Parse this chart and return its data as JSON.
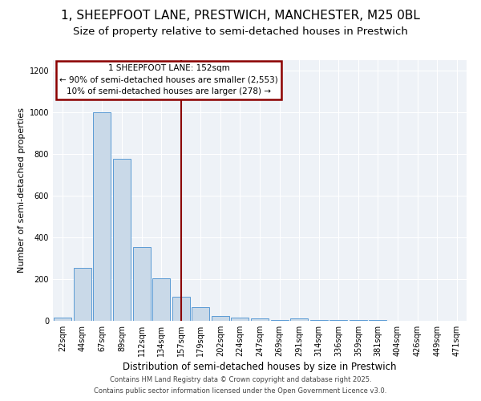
{
  "title1": "1, SHEEPFOOT LANE, PRESTWICH, MANCHESTER, M25 0BL",
  "title2": "Size of property relative to semi-detached houses in Prestwich",
  "xlabel": "Distribution of semi-detached houses by size in Prestwich",
  "ylabel": "Number of semi-detached properties",
  "categories": [
    "22sqm",
    "44sqm",
    "67sqm",
    "89sqm",
    "112sqm",
    "134sqm",
    "157sqm",
    "179sqm",
    "202sqm",
    "224sqm",
    "247sqm",
    "269sqm",
    "291sqm",
    "314sqm",
    "336sqm",
    "359sqm",
    "381sqm",
    "404sqm",
    "426sqm",
    "449sqm",
    "471sqm"
  ],
  "values": [
    15,
    255,
    1000,
    775,
    355,
    205,
    115,
    65,
    25,
    15,
    10,
    5,
    10,
    5,
    5,
    2,
    2,
    0,
    0,
    0,
    0
  ],
  "bar_color": "#c9d9e8",
  "bar_edge_color": "#5b9bd5",
  "vline_x_index": 6,
  "vline_color": "#8b0000",
  "annotation_line1": "1 SHEEPFOOT LANE: 152sqm",
  "annotation_line2": "← 90% of semi-detached houses are smaller (2,553)",
  "annotation_line3": "10% of semi-detached houses are larger (278) →",
  "annotation_box_color": "#8b0000",
  "ylim": [
    0,
    1250
  ],
  "yticks": [
    0,
    200,
    400,
    600,
    800,
    1000,
    1200
  ],
  "footer1": "Contains HM Land Registry data © Crown copyright and database right 2025.",
  "footer2": "Contains public sector information licensed under the Open Government Licence v3.0.",
  "bg_color": "#eef2f7",
  "title1_fontsize": 11,
  "title2_fontsize": 9.5,
  "xlabel_fontsize": 8.5,
  "ylabel_fontsize": 8,
  "tick_fontsize": 7,
  "annotation_fontsize": 7.5,
  "footer_fontsize": 6
}
